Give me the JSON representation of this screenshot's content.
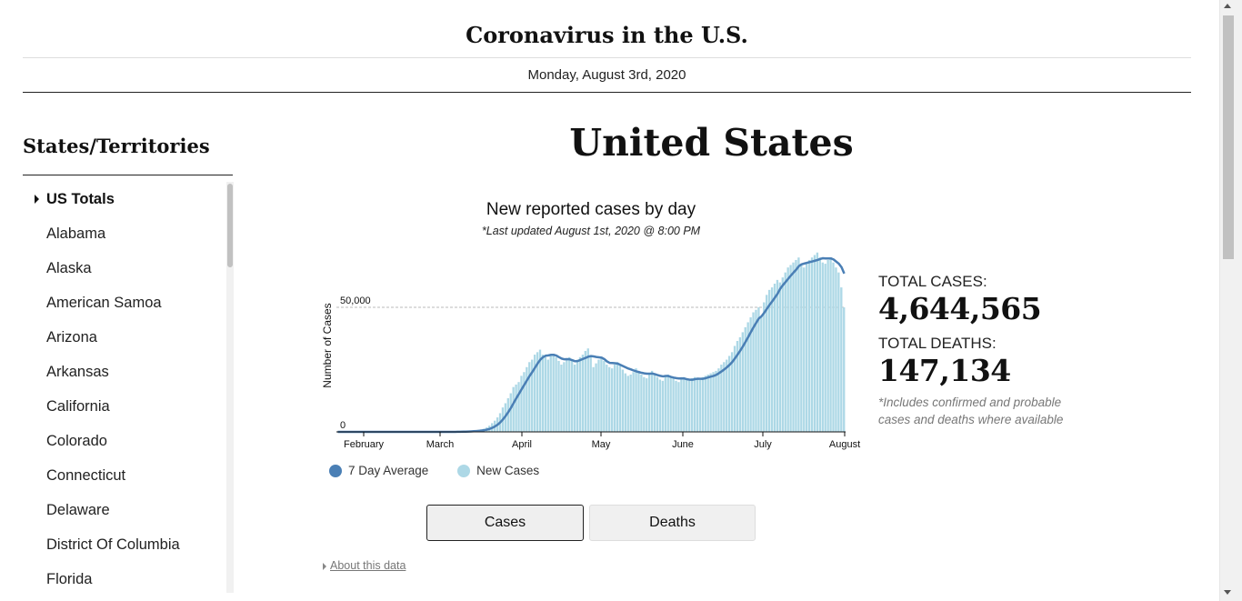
{
  "header": {
    "title": "Coronavirus in the U.S.",
    "date": "Monday, August 3rd, 2020"
  },
  "sidebar": {
    "title": "States/Territories",
    "items": [
      {
        "label": "US Totals",
        "active": true
      },
      {
        "label": "Alabama"
      },
      {
        "label": "Alaska"
      },
      {
        "label": "American Samoa"
      },
      {
        "label": "Arizona"
      },
      {
        "label": "Arkansas"
      },
      {
        "label": "California"
      },
      {
        "label": "Colorado"
      },
      {
        "label": "Connecticut"
      },
      {
        "label": "Delaware"
      },
      {
        "label": "District Of Columbia"
      },
      {
        "label": "Florida"
      }
    ]
  },
  "main": {
    "country": "United States",
    "chart_title": "New reported cases by day",
    "chart_subtitle": "*Last updated August 1st, 2020 @ 8:00 PM"
  },
  "stats": {
    "cases_label": "TOTAL CASES:",
    "cases_value": "4,644,565",
    "deaths_label": "TOTAL DEATHS:",
    "deaths_value": "147,134",
    "note": "*Includes confirmed and probable cases and deaths where available"
  },
  "legend": {
    "avg_label": "7 Day Average",
    "new_label": "New Cases"
  },
  "buttons": {
    "cases": "Cases",
    "deaths": "Deaths"
  },
  "about": "About this data",
  "colors": {
    "avg_line": "#4a7fb5",
    "bars": "#add8e6"
  },
  "chart_data": {
    "type": "bar",
    "ylabel": "Number of Cases",
    "xticks": [
      "February",
      "March",
      "April",
      "May",
      "June",
      "July",
      "August"
    ],
    "yticks": [
      "0",
      "50,000"
    ],
    "ylim": [
      0,
      73000
    ],
    "x_start": "2020-01-22",
    "x_end": "2020-08-01",
    "series": [
      {
        "name": "New Cases",
        "values": [
          0,
          0,
          0,
          0,
          0,
          0,
          0,
          0,
          0,
          0,
          0,
          0,
          0,
          0,
          0,
          0,
          0,
          0,
          0,
          0,
          0,
          0,
          0,
          0,
          0,
          0,
          0,
          0,
          0,
          0,
          0,
          0,
          0,
          0,
          0,
          0,
          0,
          0,
          0,
          0,
          0,
          0,
          10,
          30,
          50,
          100,
          120,
          200,
          250,
          300,
          400,
          500,
          600,
          800,
          1000,
          1300,
          1800,
          2500,
          3500,
          4500,
          5800,
          7500,
          9800,
          11500,
          13500,
          15500,
          18000,
          19000,
          20000,
          22500,
          24000,
          26000,
          28000,
          29000,
          31000,
          32000,
          33000,
          31000,
          30000,
          29000,
          30500,
          31000,
          30000,
          28500,
          27000,
          28000,
          29500,
          30000,
          28500,
          27000,
          29000,
          30000,
          31000,
          32500,
          33500,
          30000,
          26000,
          27500,
          29000,
          30000,
          28500,
          27000,
          26000,
          25500,
          27000,
          28000,
          26500,
          25000,
          23500,
          22500,
          23000,
          24000,
          25500,
          24500,
          23000,
          22000,
          21500,
          23000,
          24500,
          23500,
          22000,
          21000,
          20500,
          22500,
          23000,
          22000,
          21500,
          20500,
          20000,
          21000,
          22000,
          21000,
          20500,
          21500,
          22000,
          21500,
          20800,
          22000,
          22500,
          23000,
          23500,
          24000,
          24500,
          25500,
          27000,
          28000,
          29000,
          30500,
          32000,
          34500,
          36500,
          38000,
          40000,
          42000,
          44000,
          46000,
          48000,
          49000,
          50000,
          46000,
          52000,
          55000,
          57000,
          58000,
          59500,
          61000,
          60000,
          62000,
          64000,
          66000,
          67000,
          68000,
          69000,
          70000,
          67000,
          66000,
          68000,
          69000,
          70000,
          71000,
          72000,
          70000,
          68000,
          67500,
          69000,
          70000,
          68000,
          66000,
          64000,
          58000,
          50000
        ],
        "dates_note": ""
      },
      {
        "name": "7 Day Average",
        "values_ref": "computed"
      }
    ]
  }
}
